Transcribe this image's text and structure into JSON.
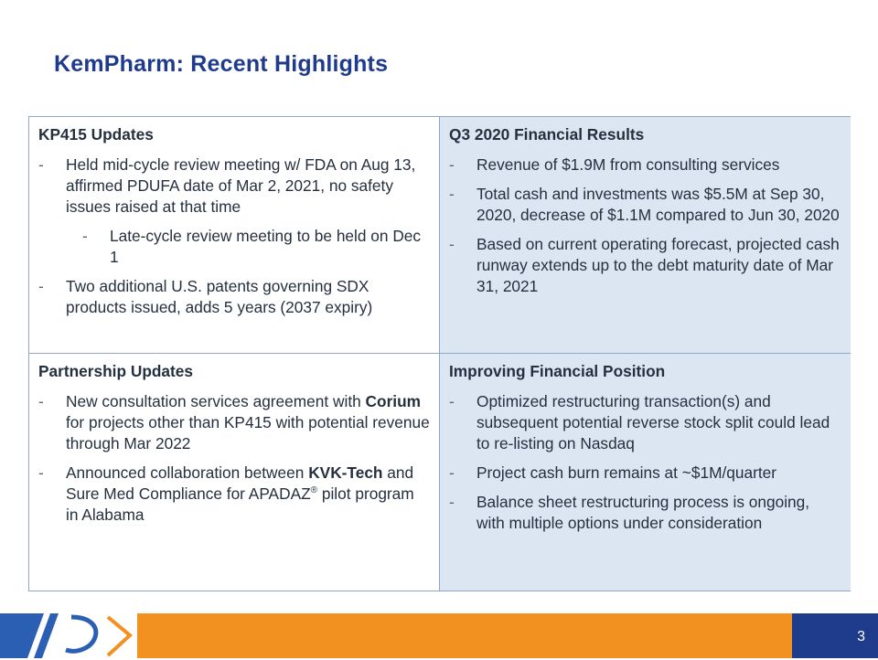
{
  "title": "KemPharm: Recent Highlights",
  "cells": {
    "kp415": {
      "heading": "KP415 Updates",
      "bullet1": "Held mid-cycle review meeting w/ FDA on Aug 13, affirmed PDUFA date of Mar 2, 2021, no safety issues raised at that time",
      "sub1": "Late-cycle review meeting to be held on Dec 1",
      "bullet2": "Two additional U.S. patents governing SDX products issued, adds 5 years (2037 expiry)"
    },
    "q3": {
      "heading": "Q3 2020 Financial Results",
      "bullet1": "Revenue of $1.9M from consulting services",
      "bullet2": "Total cash and investments was $5.5M at Sep 30, 2020, decrease of $1.1M compared to Jun 30, 2020",
      "bullet3": "Based on current operating forecast, projected cash runway extends up to the debt maturity date of Mar 31, 2021"
    },
    "partnership": {
      "heading": "Partnership Updates",
      "b1_pre": "New consultation services agreement with ",
      "b1_bold": "Corium",
      "b1_post": " for projects other than KP415 with potential revenue through Mar 2022",
      "b2_pre": "Announced collaboration between ",
      "b2_bold": "KVK-Tech",
      "b2_mid": " and Sure Med Compliance for APADAZ",
      "b2_sup": "®",
      "b2_post": " pilot program in Alabama"
    },
    "financial": {
      "heading": "Improving Financial Position",
      "bullet1": "Optimized restructuring transaction(s) and subsequent potential reverse stock split could lead to re-listing on Nasdaq",
      "bullet2": "Project cash burn remains at ~$1M/quarter",
      "bullet3": "Balance sheet restructuring process is ongoing, with multiple options under consideration"
    }
  },
  "bullet_marker": "-",
  "footer": {
    "page_number": "3",
    "colors": {
      "orange": "#f29120",
      "navy": "#1f3b8c",
      "logo_blue": "#2b5fb4"
    }
  }
}
